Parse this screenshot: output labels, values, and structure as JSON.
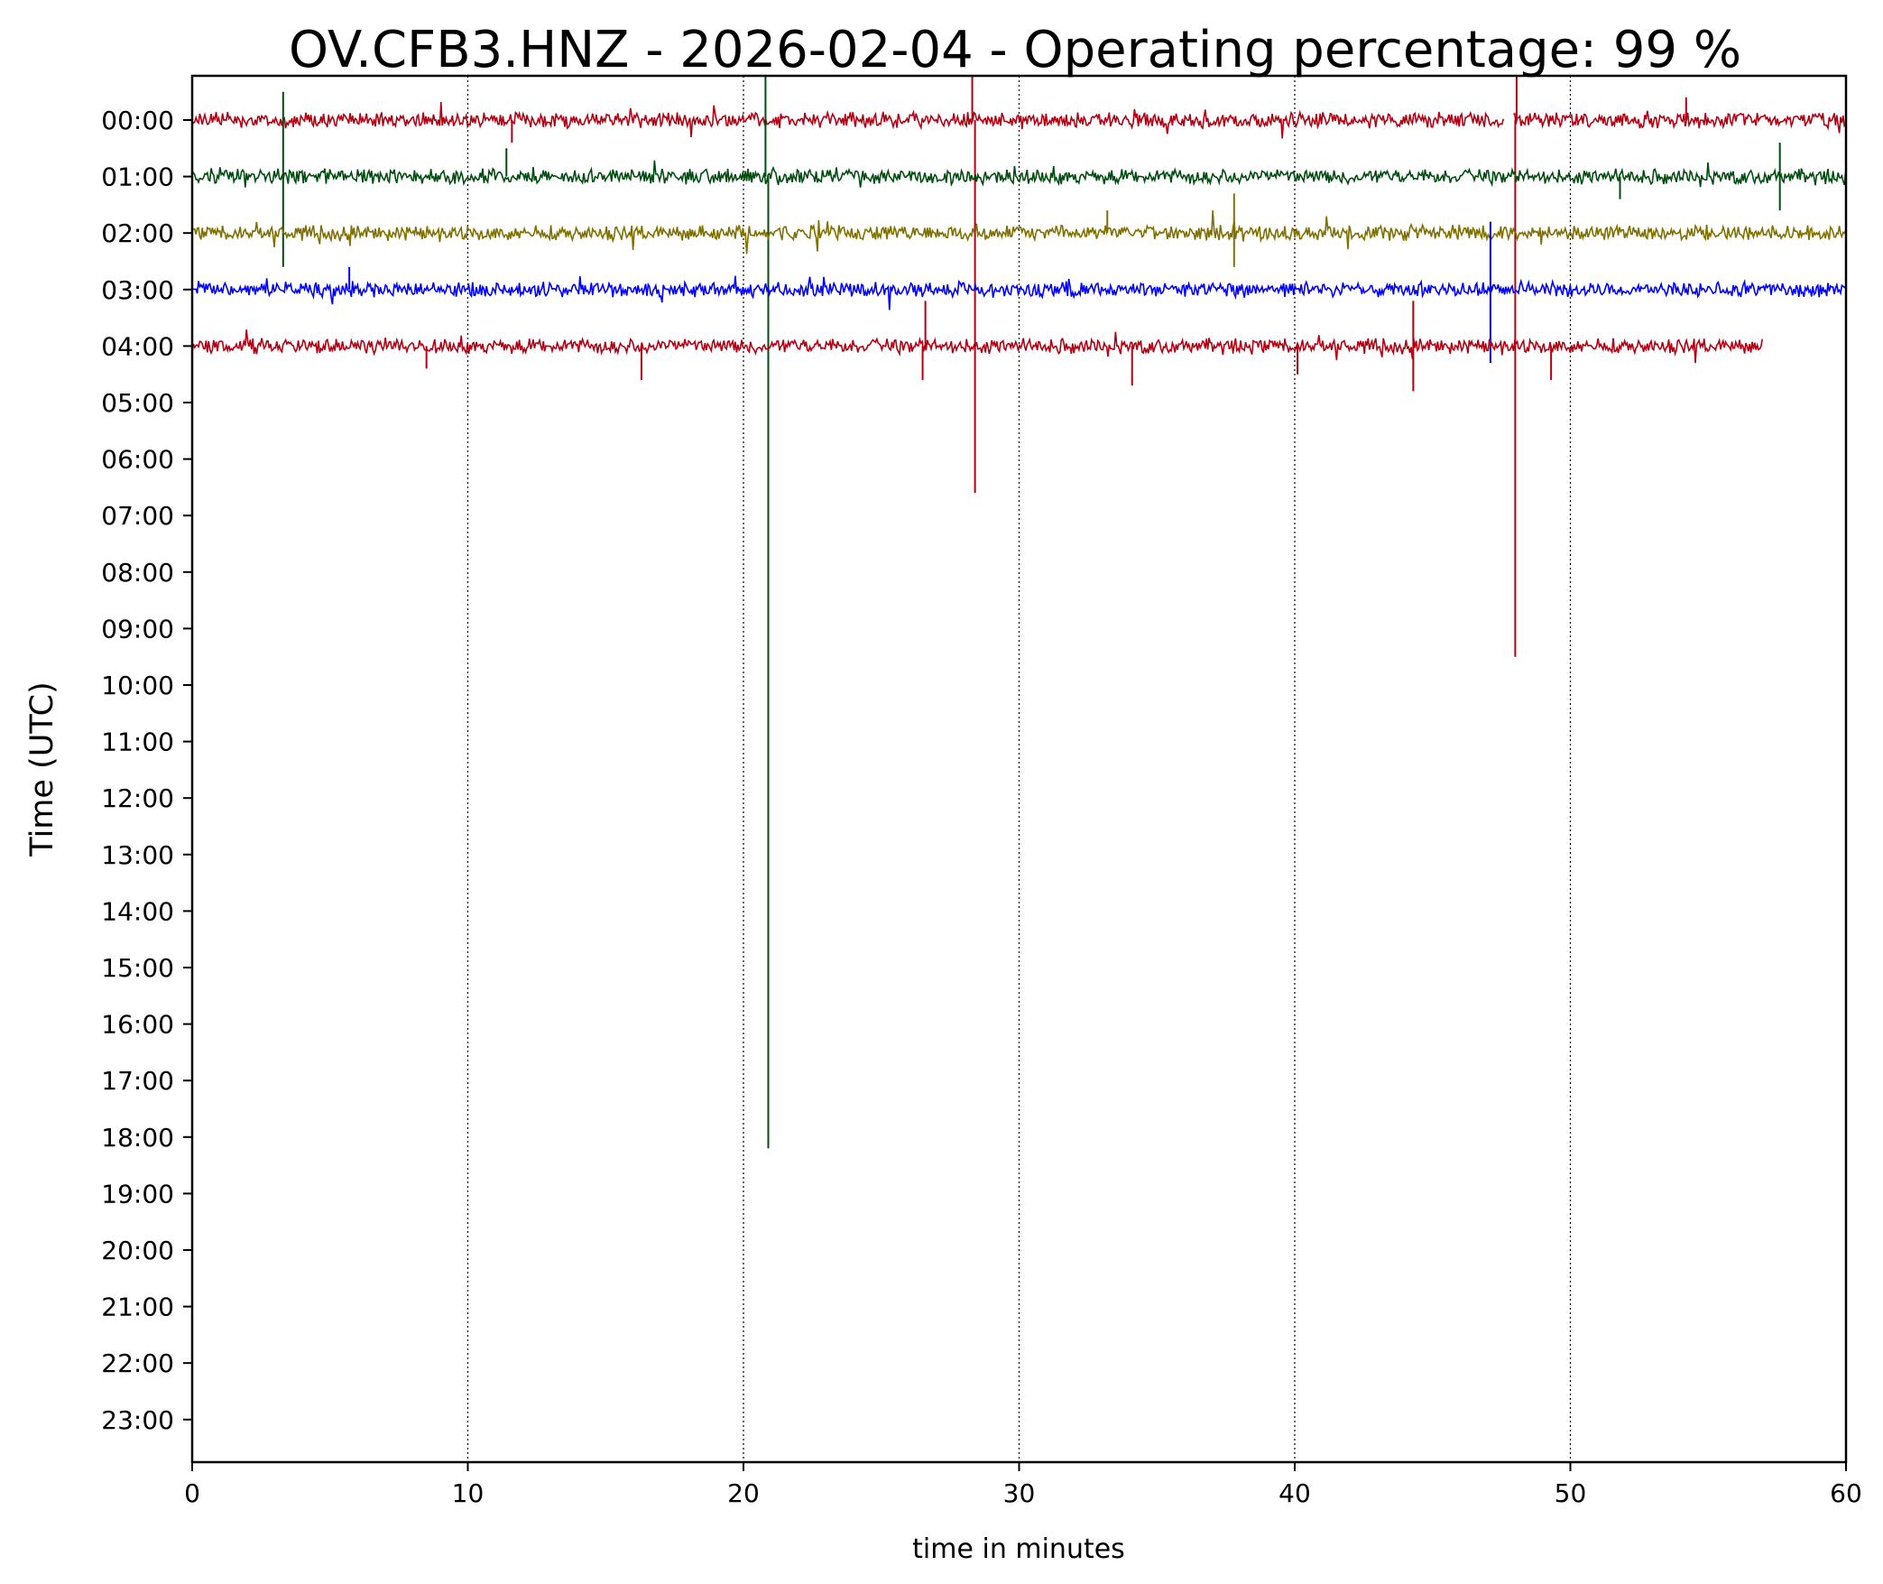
{
  "chart_data": {
    "type": "line",
    "title": "OV.CFB3.HNZ - 2026-02-04 - Operating percentage: 99 %",
    "xlabel": "time in minutes",
    "ylabel": "Time (UTC)",
    "xlim": [
      0,
      60
    ],
    "xticks": [
      "0",
      "10",
      "20",
      "30",
      "40",
      "50",
      "60"
    ],
    "grid": "vertical dotted lines at x = 10, 20, 30, 40, 50",
    "hour_labels": [
      "00:00",
      "01:00",
      "02:00",
      "03:00",
      "04:00",
      "05:00",
      "06:00",
      "07:00",
      "08:00",
      "09:00",
      "10:00",
      "11:00",
      "12:00",
      "13:00",
      "14:00",
      "15:00",
      "16:00",
      "17:00",
      "18:00",
      "19:00",
      "20:00",
      "21:00",
      "22:00",
      "23:00"
    ],
    "color_cycle": [
      "#b30012",
      "#004d0f",
      "#807000",
      "#0000ff"
    ],
    "series": [
      {
        "hour": "00:00",
        "color": "#b30012",
        "x_start": 0,
        "x_end": 60,
        "gaps": [
          [
            47.6,
            47.9
          ]
        ],
        "events": [
          {
            "x": 28.3,
            "amp": 0.9
          },
          {
            "x": 28.4,
            "amp": -6.6
          },
          {
            "x": 48.0,
            "amp": -9.5
          },
          {
            "x": 48.05,
            "amp": 0.9
          },
          {
            "x": 11.6,
            "amp": -0.4
          },
          {
            "x": 54.2,
            "amp": 0.4
          }
        ]
      },
      {
        "hour": "01:00",
        "color": "#004d0f",
        "x_start": 0,
        "x_end": 60,
        "gaps": [],
        "events": [
          {
            "x": 3.3,
            "amp": 1.5
          },
          {
            "x": 3.3,
            "amp": -1.6
          },
          {
            "x": 20.8,
            "amp": 1.9
          },
          {
            "x": 20.9,
            "amp": -17.2
          },
          {
            "x": 11.4,
            "amp": 0.5
          },
          {
            "x": 57.6,
            "amp": 0.6
          },
          {
            "x": 57.6,
            "amp": -0.6
          },
          {
            "x": 51.8,
            "amp": -0.4
          }
        ]
      },
      {
        "hour": "02:00",
        "color": "#807000",
        "x_start": 0,
        "x_end": 60,
        "gaps": [],
        "events": [
          {
            "x": 37.8,
            "amp": 0.7
          },
          {
            "x": 37.8,
            "amp": -0.6
          },
          {
            "x": 33.2,
            "amp": 0.4
          }
        ]
      },
      {
        "hour": "03:00",
        "color": "#0000ff",
        "x_start": 0,
        "x_end": 60,
        "gaps": [],
        "events": [
          {
            "x": 47.1,
            "amp": 1.2
          },
          {
            "x": 47.1,
            "amp": -1.3
          },
          {
            "x": 5.7,
            "amp": 0.4
          }
        ]
      },
      {
        "hour": "04:00",
        "color": "#b30012",
        "x_start": 0,
        "x_end": 57.0,
        "gaps": [],
        "events": [
          {
            "x": 26.6,
            "amp": 0.8
          },
          {
            "x": 26.5,
            "amp": -0.6
          },
          {
            "x": 44.3,
            "amp": 0.8
          },
          {
            "x": 44.3,
            "amp": -0.8
          },
          {
            "x": 16.3,
            "amp": -0.6
          },
          {
            "x": 34.1,
            "amp": -0.7
          },
          {
            "x": 40.1,
            "amp": -0.5
          },
          {
            "x": 49.3,
            "amp": -0.6
          },
          {
            "x": 8.5,
            "amp": -0.4
          }
        ]
      }
    ]
  }
}
